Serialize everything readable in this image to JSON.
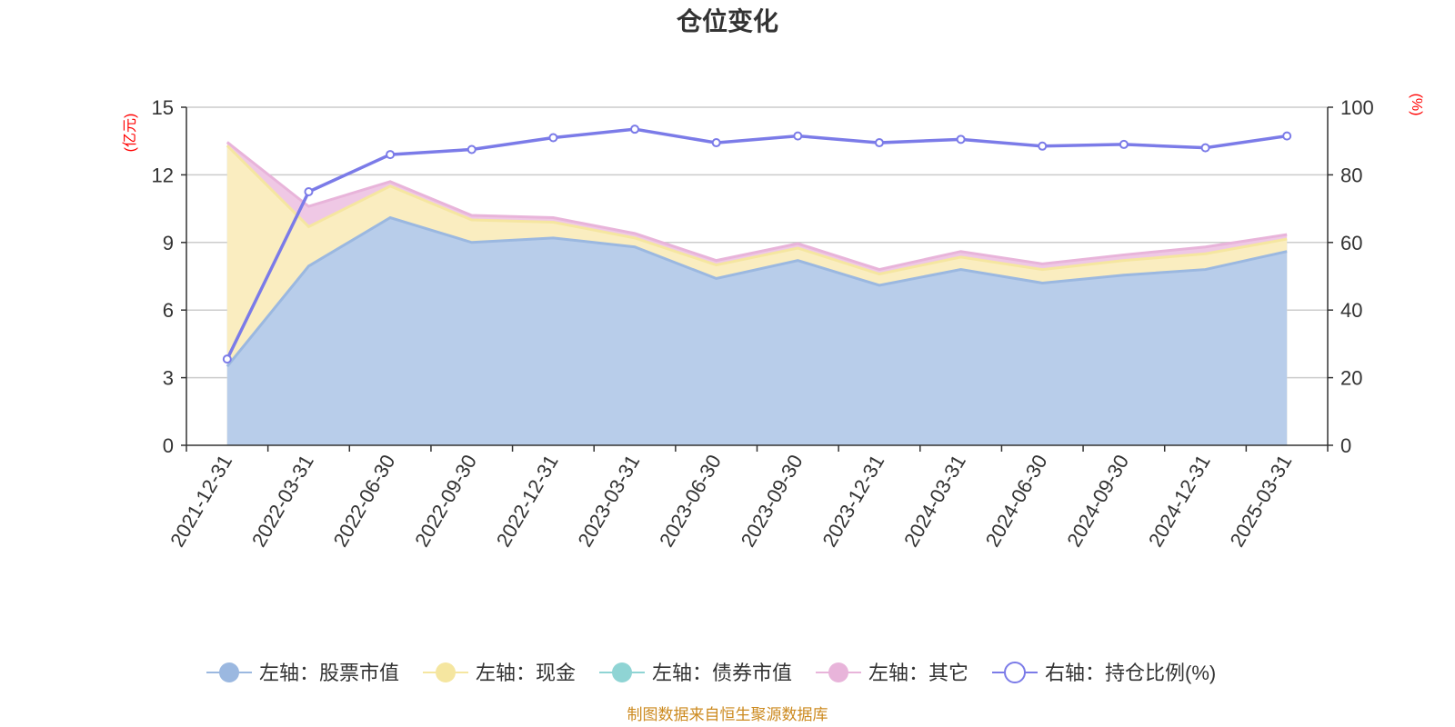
{
  "chart_data": {
    "type": "area",
    "title": "仓位变化",
    "source": "制图数据来自恒生聚源数据库",
    "left_axis": {
      "unit": "(亿元)",
      "ylim": [
        0,
        15
      ],
      "ticks": [
        "0",
        "3",
        "6",
        "9",
        "12",
        "15"
      ]
    },
    "right_axis": {
      "unit": "(%)",
      "ylim": [
        0,
        100
      ],
      "ticks": [
        "0",
        "20",
        "40",
        "60",
        "80",
        "100"
      ]
    },
    "categories": [
      "2021-12-31",
      "2022-03-31",
      "2022-06-30",
      "2022-09-30",
      "2022-12-31",
      "2023-03-31",
      "2023-06-30",
      "2023-09-30",
      "2023-12-31",
      "2024-03-31",
      "2024-06-30",
      "2024-09-30",
      "2024-12-31",
      "2025-03-31"
    ],
    "series": [
      {
        "name": "左轴：股票市值",
        "axis": "left",
        "kind": "stacked-area",
        "color": "#9bb8e0",
        "fill": "#b8cdea",
        "values": [
          3.5,
          7.95,
          10.1,
          9.0,
          9.2,
          8.8,
          7.4,
          8.2,
          7.1,
          7.8,
          7.2,
          7.55,
          7.8,
          8.6
        ]
      },
      {
        "name": "左轴：现金",
        "axis": "left",
        "kind": "stacked-area",
        "color": "#f5e6a0",
        "fill": "#faedc0",
        "values": [
          9.8,
          1.75,
          1.4,
          1.0,
          0.7,
          0.4,
          0.6,
          0.55,
          0.5,
          0.55,
          0.6,
          0.65,
          0.7,
          0.55
        ]
      },
      {
        "name": "左轴：债券市值",
        "axis": "left",
        "kind": "stacked-area",
        "color": "#8fd4d4",
        "fill": "#b5e3e3",
        "values": [
          0,
          0,
          0,
          0,
          0,
          0,
          0,
          0,
          0,
          0,
          0,
          0,
          0,
          0
        ]
      },
      {
        "name": "左轴：其它",
        "axis": "left",
        "kind": "stacked-area",
        "color": "#e8b4da",
        "fill": "#efc8e5",
        "values": [
          0.15,
          0.9,
          0.2,
          0.2,
          0.2,
          0.2,
          0.2,
          0.2,
          0.2,
          0.25,
          0.25,
          0.25,
          0.3,
          0.2
        ]
      },
      {
        "name": "右轴：持仓比例(%)",
        "axis": "right",
        "kind": "line",
        "color": "#7b7be8",
        "values": [
          25.5,
          75.0,
          86.0,
          87.5,
          91.0,
          93.5,
          89.5,
          91.5,
          89.5,
          90.5,
          88.5,
          89.0,
          88.0,
          91.5
        ]
      }
    ],
    "grid": true,
    "legend_position": "bottom"
  }
}
